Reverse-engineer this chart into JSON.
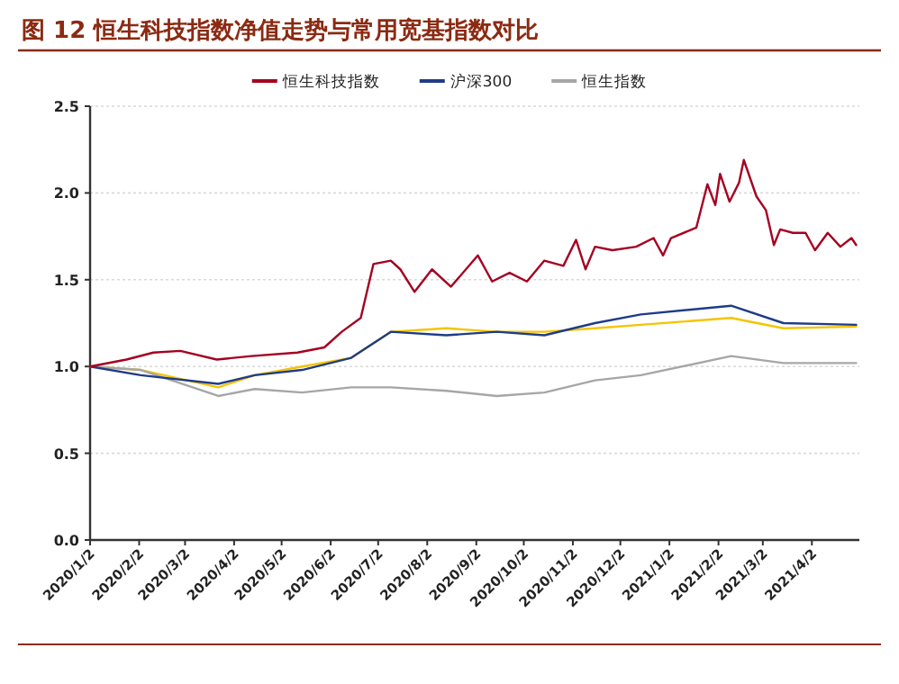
{
  "chart_data": {
    "type": "line",
    "title": "图 12 恒生科技指数净值走势与常用宽基指数对比",
    "grid": "y",
    "legend": "top",
    "marker": "none",
    "line_style": "solid",
    "xlim": [
      "2020-01-02",
      "2021-05-02"
    ],
    "ylim": [
      0,
      2.5
    ],
    "xticks": [
      {
        "value": "2020-01-02",
        "label": "2020/1/2"
      },
      {
        "value": "2020-02-02",
        "label": "2020/2/2"
      },
      {
        "value": "2020-03-02",
        "label": "2020/3/2"
      },
      {
        "value": "2020-04-02",
        "label": "2020/4/2"
      },
      {
        "value": "2020-05-02",
        "label": "2020/5/2"
      },
      {
        "value": "2020-06-02",
        "label": "2020/6/2"
      },
      {
        "value": "2020-07-02",
        "label": "2020/7/2"
      },
      {
        "value": "2020-08-02",
        "label": "2020/8/2"
      },
      {
        "value": "2020-09-02",
        "label": "2020/9/2"
      },
      {
        "value": "2020-10-02",
        "label": "2020/10/2"
      },
      {
        "value": "2020-11-02",
        "label": "2020/11/2"
      },
      {
        "value": "2020-12-02",
        "label": "2020/12/2"
      },
      {
        "value": "2021-01-02",
        "label": "2021/1/2"
      },
      {
        "value": "2021-02-02",
        "label": "2021/2/2"
      },
      {
        "value": "2021-03-02",
        "label": "2021/3/2"
      },
      {
        "value": "2021-04-02",
        "label": "2021/4/2"
      }
    ],
    "yticks": [
      {
        "value": 0,
        "label": "0.0"
      },
      {
        "value": 0.5,
        "label": "0.5"
      },
      {
        "value": 1,
        "label": "1.0"
      },
      {
        "value": 1.5,
        "label": "1.5"
      },
      {
        "value": 2,
        "label": "2.0"
      },
      {
        "value": 2.5,
        "label": "2.5"
      }
    ],
    "series": [
      {
        "name": "恒生科技指数",
        "color": "#a50021",
        "x": [
          "2020-01-02",
          "2020-01-25",
          "2020-02-11",
          "2020-02-28",
          "2020-03-22",
          "2020-04-13",
          "2020-05-12",
          "2020-05-29",
          "2020-06-09",
          "2020-06-21",
          "2020-06-29",
          "2020-07-10",
          "2020-07-16",
          "2020-07-25",
          "2020-08-05",
          "2020-08-17",
          "2020-09-03",
          "2020-09-12",
          "2020-09-23",
          "2020-10-04",
          "2020-10-15",
          "2020-10-27",
          "2020-11-04",
          "2020-11-10",
          "2020-11-16",
          "2020-11-27",
          "2020-12-12",
          "2020-12-23",
          "2020-12-29",
          "2021-01-03",
          "2021-01-19",
          "2021-01-26",
          "2021-01-31",
          "2021-02-03",
          "2021-02-09",
          "2021-02-15",
          "2021-02-18",
          "2021-02-26",
          "2021-03-04",
          "2021-03-09",
          "2021-03-13",
          "2021-03-21",
          "2021-03-29",
          "2021-04-04",
          "2021-04-12",
          "2021-04-20",
          "2021-04-27",
          "2021-04-30"
        ],
        "values": [
          1.0,
          1.04,
          1.08,
          1.09,
          1.04,
          1.06,
          1.08,
          1.11,
          1.2,
          1.28,
          1.59,
          1.61,
          1.56,
          1.43,
          1.56,
          1.46,
          1.64,
          1.49,
          1.54,
          1.49,
          1.61,
          1.58,
          1.73,
          1.56,
          1.69,
          1.67,
          1.69,
          1.74,
          1.64,
          1.74,
          1.8,
          2.05,
          1.93,
          2.11,
          1.95,
          2.06,
          2.19,
          1.98,
          1.9,
          1.7,
          1.79,
          1.77,
          1.77,
          1.67,
          1.77,
          1.69,
          1.74,
          1.7
        ]
      },
      {
        "name": "沪深300",
        "color": "#1f3c88",
        "x": [
          "2020-01-02",
          "2020-02-03",
          "2020-03-23",
          "2020-04-15",
          "2020-05-15",
          "2020-06-15",
          "2020-07-10",
          "2020-08-14",
          "2020-09-15",
          "2020-10-15",
          "2020-11-16",
          "2020-12-15",
          "2021-02-10",
          "2021-03-15",
          "2021-04-30"
        ],
        "values": [
          1.0,
          0.95,
          0.9,
          0.95,
          0.98,
          1.05,
          1.2,
          1.18,
          1.2,
          1.18,
          1.25,
          1.3,
          1.35,
          1.25,
          1.24
        ]
      },
      {
        "name": "恒生指数",
        "color": "#a6a6a6",
        "x": [
          "2020-01-02",
          "2020-02-03",
          "2020-03-23",
          "2020-04-15",
          "2020-05-15",
          "2020-06-15",
          "2020-07-10",
          "2020-08-14",
          "2020-09-15",
          "2020-10-15",
          "2020-11-16",
          "2020-12-15",
          "2021-02-10",
          "2021-03-15",
          "2021-04-30"
        ],
        "values": [
          1.0,
          0.98,
          0.83,
          0.87,
          0.85,
          0.88,
          0.88,
          0.86,
          0.83,
          0.85,
          0.92,
          0.95,
          1.06,
          1.02,
          1.02
        ]
      },
      {
        "color": "#f5c400",
        "x": [
          "2020-01-02",
          "2020-02-03",
          "2020-03-23",
          "2020-04-15",
          "2020-05-15",
          "2020-06-15",
          "2020-07-10",
          "2020-08-14",
          "2020-09-15",
          "2020-10-15",
          "2020-11-16",
          "2020-12-15",
          "2021-02-10",
          "2021-03-15",
          "2021-04-30"
        ],
        "values": [
          1.0,
          0.98,
          0.88,
          0.95,
          1.0,
          1.05,
          1.2,
          1.22,
          1.2,
          1.2,
          1.22,
          1.24,
          1.28,
          1.22,
          1.23
        ]
      }
    ]
  }
}
